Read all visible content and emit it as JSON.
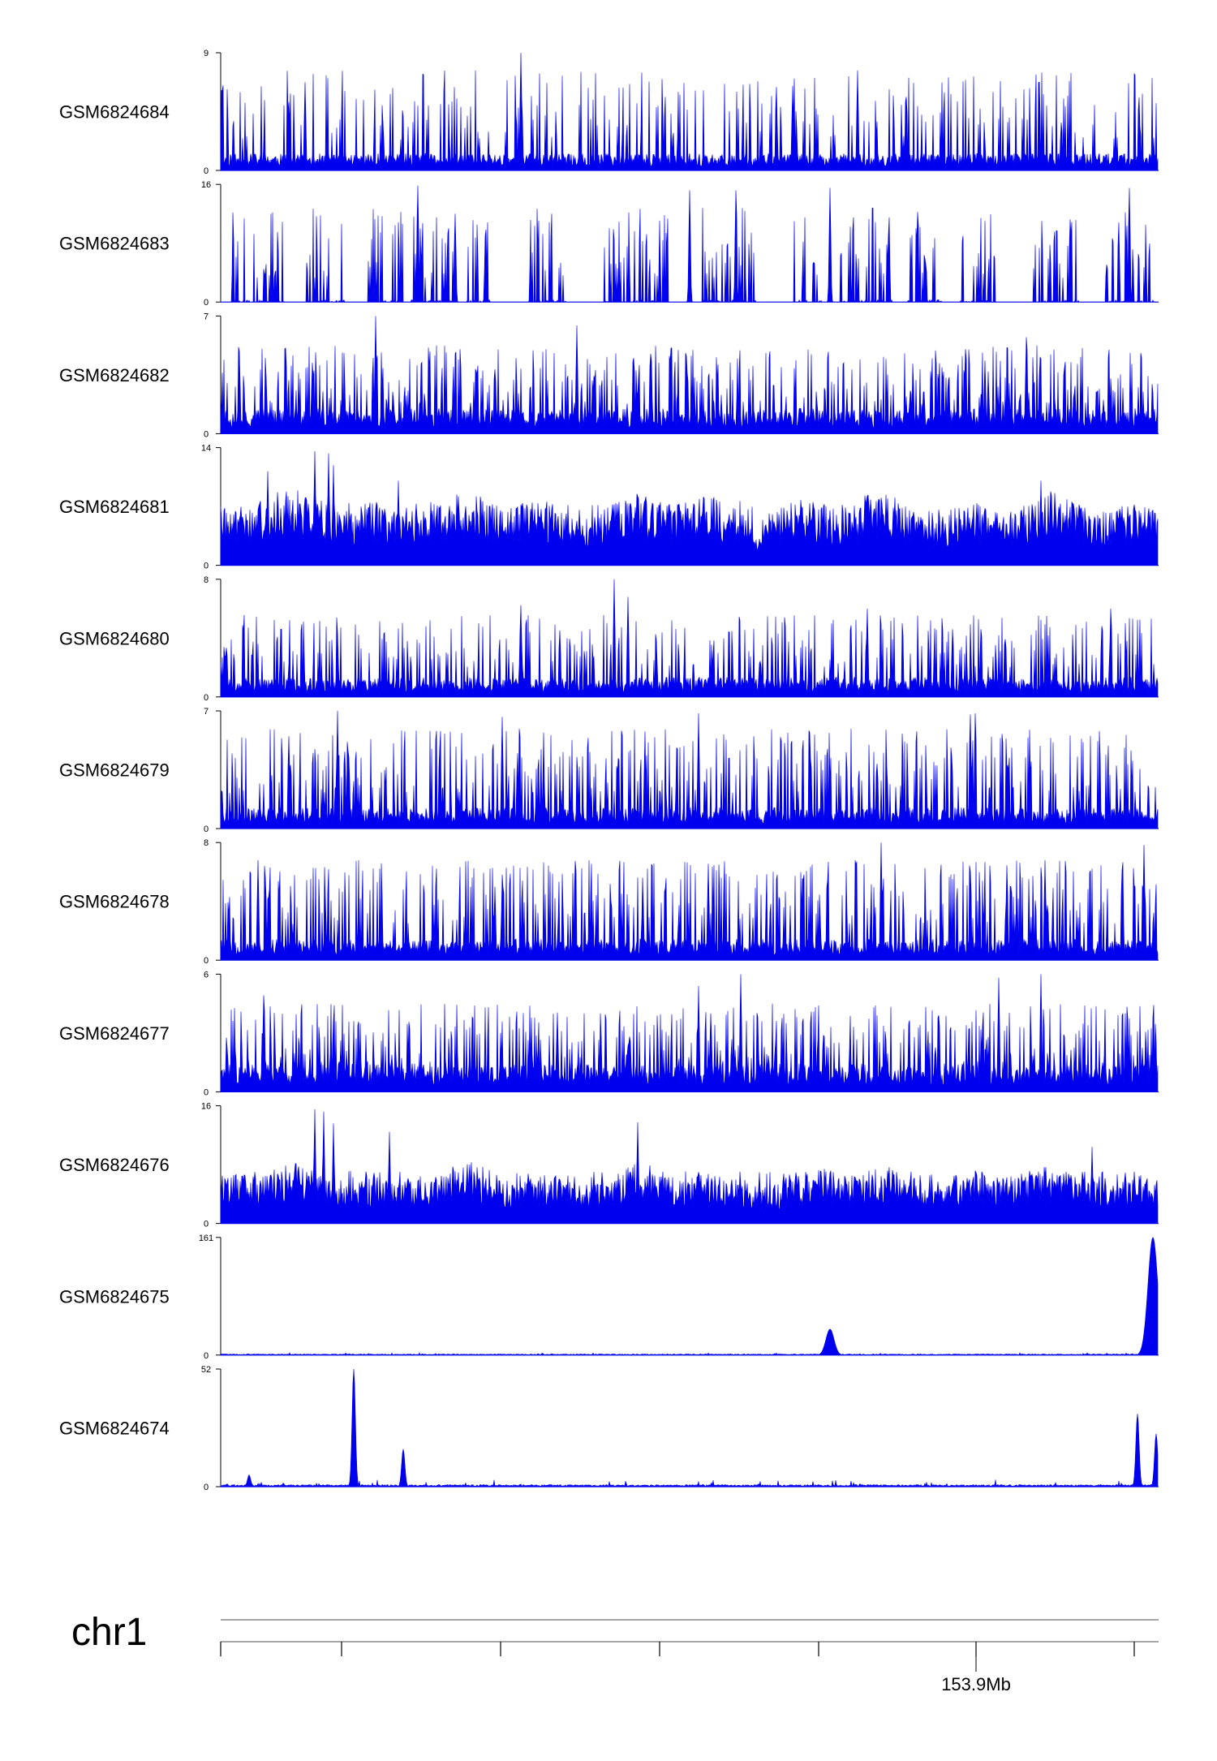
{
  "chart_data": {
    "type": "area",
    "color": "#0000EE",
    "tracks": [
      {
        "name": "GSM6824684",
        "ymax": 9,
        "ymin": 0,
        "pattern": "spiky",
        "seed": 11,
        "base": 0.12,
        "spike_prob": 0.22,
        "spike_min": 0.25,
        "spike_max": 0.85,
        "peaks": [
          {
            "pos": 0.32,
            "height": 1.0
          },
          {
            "pos": 0.68,
            "height": 0.85
          },
          {
            "pos": 0.09,
            "height": 0.75
          },
          {
            "pos": 0.61,
            "height": 0.72
          },
          {
            "pos": 0.98,
            "height": 0.62
          }
        ]
      },
      {
        "name": "GSM6824683",
        "ymax": 16,
        "ymin": 0,
        "pattern": "sparse",
        "seed": 23,
        "base": 0.02,
        "spike_prob": 0.35,
        "spike_min": 0.2,
        "spike_max": 0.8,
        "peaks": [
          {
            "pos": 0.21,
            "height": 0.99
          },
          {
            "pos": 0.5,
            "height": 0.95
          },
          {
            "pos": 0.55,
            "height": 0.95
          },
          {
            "pos": 0.65,
            "height": 0.97
          },
          {
            "pos": 0.97,
            "height": 0.97
          },
          {
            "pos": 0.25,
            "height": 0.75
          }
        ]
      },
      {
        "name": "GSM6824682",
        "ymax": 7,
        "ymin": 0,
        "pattern": "spiky",
        "seed": 37,
        "base": 0.18,
        "spike_prob": 0.3,
        "spike_min": 0.25,
        "spike_max": 0.75,
        "peaks": [
          {
            "pos": 0.165,
            "height": 1.0
          },
          {
            "pos": 0.38,
            "height": 0.92
          },
          {
            "pos": 0.86,
            "height": 0.82
          },
          {
            "pos": 0.02,
            "height": 0.7
          }
        ]
      },
      {
        "name": "GSM6824681",
        "ymax": 14,
        "ymin": 0,
        "pattern": "dense",
        "seed": 41,
        "base": 0.3,
        "spike_prob": 0.15,
        "spike_min": 0.35,
        "spike_max": 0.55,
        "peaks": [
          {
            "pos": 0.1,
            "height": 0.97
          },
          {
            "pos": 0.115,
            "height": 0.95
          },
          {
            "pos": 0.12,
            "height": 0.85
          },
          {
            "pos": 0.05,
            "height": 0.8
          },
          {
            "pos": 0.19,
            "height": 0.72
          },
          {
            "pos": 0.875,
            "height": 0.72
          },
          {
            "pos": 0.71,
            "height": 0.6
          }
        ]
      },
      {
        "name": "GSM6824680",
        "ymax": 8,
        "ymin": 0,
        "pattern": "spiky",
        "seed": 53,
        "base": 0.14,
        "spike_prob": 0.26,
        "spike_min": 0.25,
        "spike_max": 0.7,
        "peaks": [
          {
            "pos": 0.42,
            "height": 1.0
          },
          {
            "pos": 0.435,
            "height": 0.85
          },
          {
            "pos": 0.32,
            "height": 0.78
          },
          {
            "pos": 0.95,
            "height": 0.75
          },
          {
            "pos": 0.69,
            "height": 0.75
          }
        ]
      },
      {
        "name": "GSM6824679",
        "ymax": 7,
        "ymin": 0,
        "pattern": "spiky",
        "seed": 67,
        "base": 0.15,
        "spike_prob": 0.3,
        "spike_min": 0.3,
        "spike_max": 0.85,
        "peaks": [
          {
            "pos": 0.125,
            "height": 1.0
          },
          {
            "pos": 0.3,
            "height": 0.95
          },
          {
            "pos": 0.51,
            "height": 0.98
          },
          {
            "pos": 0.8,
            "height": 0.97
          },
          {
            "pos": 0.805,
            "height": 0.98
          }
        ]
      },
      {
        "name": "GSM6824678",
        "ymax": 8,
        "ymin": 0,
        "pattern": "spiky",
        "seed": 79,
        "base": 0.15,
        "spike_prob": 0.3,
        "spike_min": 0.3,
        "spike_max": 0.85,
        "peaks": [
          {
            "pos": 0.705,
            "height": 1.0
          },
          {
            "pos": 0.985,
            "height": 0.98
          },
          {
            "pos": 0.04,
            "height": 0.85
          },
          {
            "pos": 0.52,
            "height": 0.82
          },
          {
            "pos": 0.88,
            "height": 0.85
          }
        ]
      },
      {
        "name": "GSM6824677",
        "ymax": 6,
        "ymin": 0,
        "pattern": "spiky",
        "seed": 83,
        "base": 0.2,
        "spike_prob": 0.3,
        "spike_min": 0.25,
        "spike_max": 0.75,
        "peaks": [
          {
            "pos": 0.555,
            "height": 1.0
          },
          {
            "pos": 0.875,
            "height": 1.0
          },
          {
            "pos": 0.83,
            "height": 0.97
          },
          {
            "pos": 0.51,
            "height": 0.9
          },
          {
            "pos": 0.046,
            "height": 0.82
          }
        ]
      },
      {
        "name": "GSM6824676",
        "ymax": 16,
        "ymin": 0,
        "pattern": "dense",
        "seed": 97,
        "base": 0.24,
        "spike_prob": 0.15,
        "spike_min": 0.3,
        "spike_max": 0.45,
        "peaks": [
          {
            "pos": 0.1,
            "height": 0.97
          },
          {
            "pos": 0.11,
            "height": 0.95
          },
          {
            "pos": 0.445,
            "height": 0.86
          },
          {
            "pos": 0.18,
            "height": 0.78
          },
          {
            "pos": 0.12,
            "height": 0.85
          },
          {
            "pos": 0.93,
            "height": 0.65
          }
        ]
      },
      {
        "name": "GSM6824675",
        "ymax": 161,
        "ymin": 0,
        "pattern": "flat",
        "seed": 101,
        "base": 0.008,
        "spike_prob": 0.02,
        "spike_min": 0.01,
        "spike_max": 0.02,
        "peaks": [
          {
            "pos": 0.65,
            "height": 0.22,
            "width": 0.004
          },
          {
            "pos": 0.995,
            "height": 1.0,
            "width": 0.005
          }
        ]
      },
      {
        "name": "GSM6824674",
        "ymax": 52,
        "ymin": 0,
        "pattern": "flat",
        "seed": 113,
        "base": 0.015,
        "spike_prob": 0.04,
        "spike_min": 0.02,
        "spike_max": 0.06,
        "peaks": [
          {
            "pos": 0.142,
            "height": 1.0,
            "width": 0.0015
          },
          {
            "pos": 0.195,
            "height": 0.32,
            "width": 0.002
          },
          {
            "pos": 0.978,
            "height": 0.62,
            "width": 0.002
          },
          {
            "pos": 0.998,
            "height": 0.45,
            "width": 0.0015
          },
          {
            "pos": 0.03,
            "height": 0.1,
            "width": 0.0015
          }
        ]
      }
    ],
    "chromosome": "chr1",
    "axis_label": "153.9Mb",
    "axis_label_tick_index": 4
  }
}
